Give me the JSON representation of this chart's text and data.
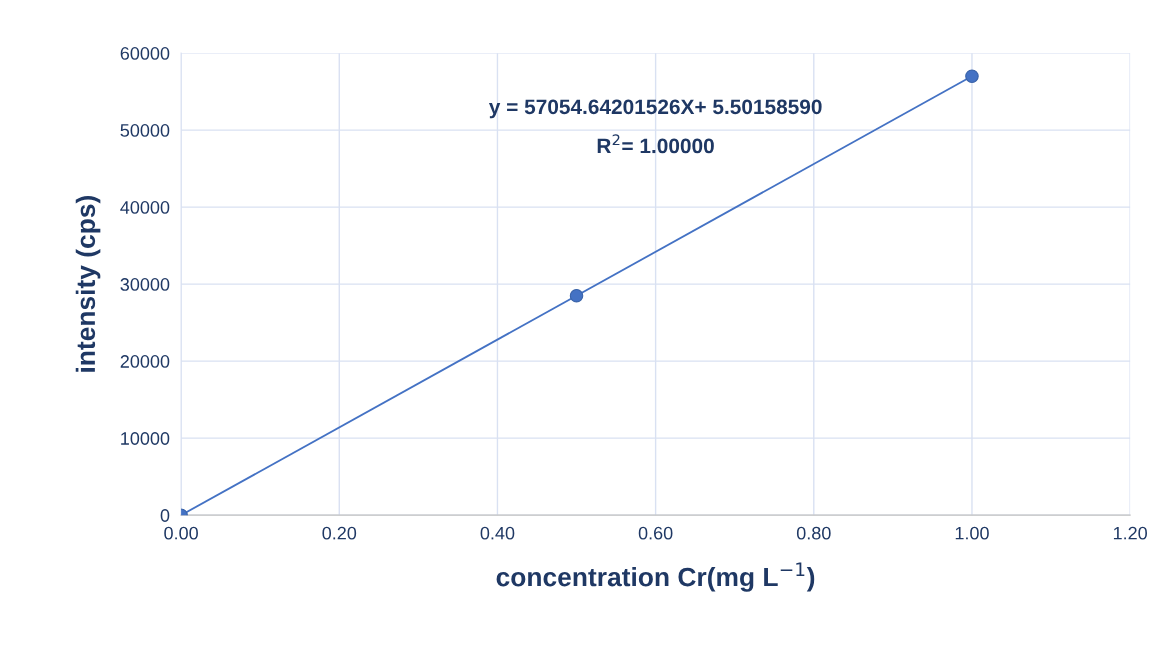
{
  "chart_data": {
    "type": "scatter",
    "xlabel": "concentration Cr(mg L$^{−1}$)",
    "ylabel": "intensity (cps)",
    "x": [
      0,
      0.5,
      1.0
    ],
    "series": [
      {
        "color": "#4472c4",
        "values": [
          0,
          28500,
          57000
        ],
        "marker": "circle"
      },
      {
        "type": "line",
        "color": "#4472c4",
        "x": [
          0,
          1.0
        ],
        "values": [
          0,
          57000
        ],
        "marker": "none",
        "line_style": "solid"
      }
    ],
    "xlim": [
      0,
      1.2
    ],
    "xticks": [
      {
        "value": 0,
        "label": "0.00"
      },
      {
        "value": 0.2,
        "label": "0.20"
      },
      {
        "value": 0.4,
        "label": "0.40"
      },
      {
        "value": 0.6,
        "label": "0.60"
      },
      {
        "value": 0.8,
        "label": "0.80"
      },
      {
        "value": 1.0,
        "label": "1.00"
      },
      {
        "value": 1.2,
        "label": "1.20"
      }
    ],
    "ylim": [
      0,
      60000
    ],
    "yticks": [
      0,
      10000,
      20000,
      30000,
      40000,
      50000,
      60000
    ],
    "grid": true,
    "legend": false,
    "annotations": [
      "y = 57054.64201526X+ 5.50158590",
      "R$^{2}$= 1.00000"
    ]
  }
}
